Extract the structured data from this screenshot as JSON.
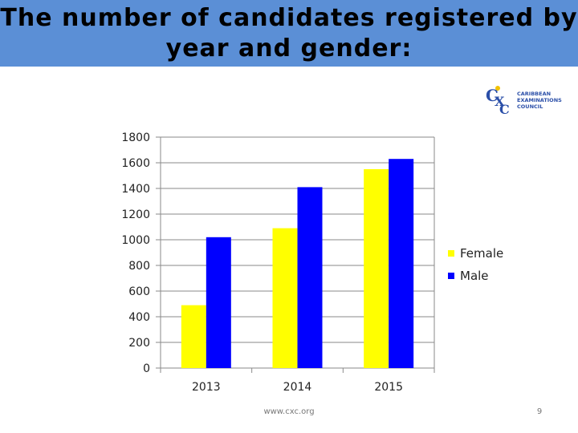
{
  "slide": {
    "title": "The number of candidates registered by\nyear and gender:",
    "footer_url": "www.cxc.org",
    "page_number": "9"
  },
  "logo": {
    "line1": "CARIBBEAN",
    "line2": "EXAMINATIONS",
    "line3": "COUNCIL",
    "color": "#2b4fa8",
    "accent": "#f2c200"
  },
  "colors": {
    "title_band": "#5b8fd6",
    "female": "#ffff00",
    "male": "#0000ff"
  },
  "chart_data": {
    "type": "bar",
    "categories": [
      "2013",
      "2014",
      "2015"
    ],
    "series": [
      {
        "name": "Female",
        "values": [
          490,
          1090,
          1550
        ],
        "color": "#ffff00"
      },
      {
        "name": "Male",
        "values": [
          1020,
          1410,
          1630
        ],
        "color": "#0000ff"
      }
    ],
    "ylim": [
      0,
      1800
    ],
    "yticks": [
      "0",
      "200",
      "400",
      "600",
      "800",
      "1000",
      "1200",
      "1400",
      "1600",
      "1800"
    ],
    "grid": true,
    "legend": "right"
  }
}
